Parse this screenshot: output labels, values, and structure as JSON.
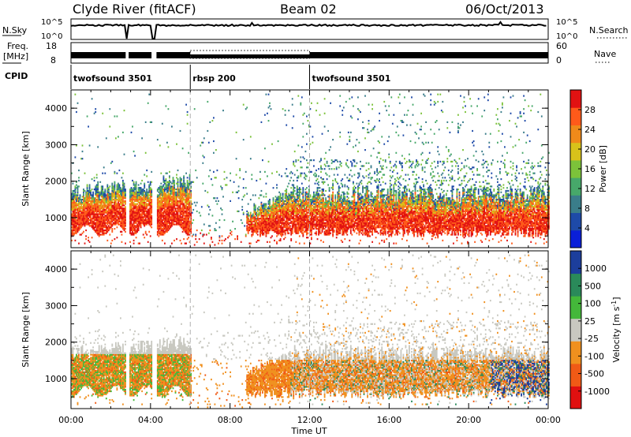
{
  "header": {
    "station": "Clyde River (fitACF)",
    "beam": "Beam 02",
    "date": "06/Oct/2013"
  },
  "nsky_panel": {
    "left_label": "N.Sky",
    "left_ticks": [
      "10^5",
      "10^0"
    ],
    "right_label": "N.Search",
    "right_ticks": [
      "10^5",
      "10^0"
    ]
  },
  "freq_panel": {
    "left_label_1": "Freq.",
    "left_label_2": "[MHz]",
    "left_ticks": [
      "18",
      "8"
    ],
    "right_label": "Nave",
    "right_ticks": [
      "60",
      "0"
    ]
  },
  "cpid": {
    "label": "CPID",
    "segments": [
      {
        "name": "twofsound 3501",
        "start": 0,
        "end": 6
      },
      {
        "name": "rbsp 200",
        "start": 6,
        "end": 12
      },
      {
        "name": "twofsound 3501",
        "start": 12,
        "end": 24
      }
    ]
  },
  "colors": {
    "power": [
      "#0a1fd8",
      "#1e4aa8",
      "#3a7d8a",
      "#47a86a",
      "#7cc23a",
      "#d8c21a",
      "#ef8a1a",
      "#ff5a1a",
      "#e11212"
    ],
    "velocity": [
      "#e01010",
      "#f05a16",
      "#f0901e",
      "#c8c8c0",
      "#44b83a",
      "#2a8a5a",
      "#1c3e9c"
    ]
  },
  "chart_data": [
    {
      "type": "heatmap",
      "title": "",
      "xlabel": "",
      "ylabel": "Slant Range [km]",
      "xlim": [
        0,
        24
      ],
      "ylim": [
        180,
        4500
      ],
      "y_ticks": [
        "1000",
        "2000",
        "3000",
        "4000"
      ],
      "colorbar": {
        "label": "Power [dB]",
        "ticks": [
          "28",
          "24",
          "20",
          "16",
          "12",
          "8",
          "4"
        ],
        "range": [
          0,
          32
        ]
      }
    },
    {
      "type": "heatmap",
      "title": "",
      "xlabel": "Time UT",
      "ylabel": "Slant Range [km]",
      "xlim": [
        0,
        24
      ],
      "ylim": [
        180,
        4500
      ],
      "x_ticks": [
        "00:00",
        "04:00",
        "08:00",
        "12:00",
        "16:00",
        "20:00",
        "00:00"
      ],
      "y_ticks": [
        "1000",
        "2000",
        "3000",
        "4000"
      ],
      "colorbar": {
        "label": "Velocity [m s^-1]",
        "ticks": [
          "1000",
          "500",
          "100",
          "25",
          "-25",
          "-100",
          "-500",
          "-1000"
        ]
      }
    }
  ]
}
